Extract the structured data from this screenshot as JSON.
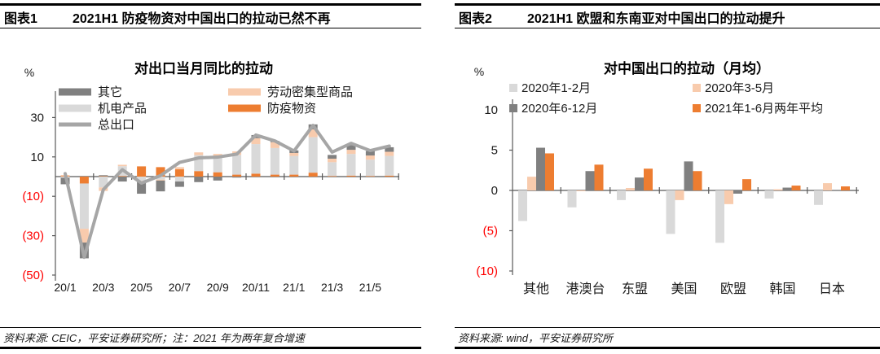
{
  "accent_colors": {
    "dark_gray": "#808080",
    "light_gray": "#D9D9D9",
    "line_gray": "#A6A6A6",
    "peach": "#F8CBAD",
    "orange": "#ED7D31",
    "negative_label": "#FF0000",
    "axis": "#595959"
  },
  "chart_data": [
    {
      "type": "bar",
      "subtype": "stacked-bars-with-line",
      "figure_label": "图表1",
      "figure_title": "2021H1 防疫物资对中国出口的拉动已然不再",
      "title": "对出口当月同比的拉动",
      "unit_label": "%",
      "categories": [
        "20/1",
        "20/2",
        "20/3",
        "20/4",
        "20/5",
        "20/6",
        "20/7",
        "20/8",
        "20/9",
        "20/10",
        "20/11",
        "20/12",
        "21/1",
        "21/2",
        "21/3",
        "21/4",
        "21/5",
        "21/6"
      ],
      "x_tick_labels": [
        "20/1",
        "20/3",
        "20/5",
        "20/7",
        "20/9",
        "20/11",
        "21/1",
        "21/3",
        "21/5"
      ],
      "series": [
        {
          "name": "其它",
          "type": "bar",
          "color": "#808080",
          "values": [
            -3.3,
            -8.0,
            0.5,
            -2.5,
            -6.0,
            -5.5,
            -2.7,
            -2.8,
            -2.0,
            -0.5,
            1.6,
            0.6,
            1.3,
            2.5,
            1.9,
            2.3,
            2.3,
            2.3
          ]
        },
        {
          "name": "机电产品",
          "type": "bar",
          "color": "#D9D9D9",
          "values": [
            -0.6,
            -23.0,
            -5.5,
            5.0,
            -2.2,
            -1.5,
            -2.5,
            8.1,
            7.8,
            10.0,
            15.0,
            13.5,
            9.5,
            18.0,
            7.0,
            11.0,
            8.3,
            10.0
          ]
        },
        {
          "name": "总出口",
          "type": "line",
          "color": "#A6A6A6",
          "values": [
            1.5,
            -41.0,
            -6.6,
            3.5,
            -3.3,
            0.5,
            7.2,
            9.5,
            9.9,
            11.4,
            21.1,
            18.1,
            13.0,
            26.0,
            12.4,
            16.9,
            13.2,
            15.5
          ]
        },
        {
          "name": "劳动密集型商品",
          "type": "bar",
          "color": "#F8CBAD",
          "values": [
            0.5,
            -7.0,
            -1.8,
            0.7,
            -0.5,
            -0.5,
            1.1,
            1.4,
            1.5,
            1.8,
            3.0,
            3.0,
            1.5,
            4.0,
            1.8,
            2.1,
            2.1,
            2.1
          ]
        },
        {
          "name": "防疫物资",
          "type": "bar",
          "color": "#ED7D31",
          "values": [
            0.3,
            -3.5,
            0.2,
            0.3,
            5.2,
            4.8,
            3.7,
            2.8,
            2.2,
            1.0,
            1.5,
            1.0,
            1.0,
            2.0,
            0.3,
            0.5,
            0.3,
            0.5
          ]
        }
      ],
      "stack_order": [
        "防疫物资",
        "机电产品",
        "劳动密集型商品",
        "其它"
      ],
      "yticks": [
        {
          "value": 30,
          "label": "30"
        },
        {
          "value": 10,
          "label": "10"
        },
        {
          "value": -10,
          "label": "(10)"
        },
        {
          "value": -30,
          "label": "(30)"
        },
        {
          "value": -50,
          "label": "(50)"
        }
      ],
      "ylim": [
        -52,
        43
      ],
      "legend_position": "top-left-two-columns",
      "grid": "off",
      "source_note": "资料来源: CEIC，平安证券研究所；注：2021 年为两年复合增速"
    },
    {
      "type": "bar",
      "subtype": "grouped-bars",
      "figure_label": "图表2",
      "figure_title": "2021H1 欧盟和东南亚对中国出口的拉动提升",
      "title": "对中国出口的拉动（月均）",
      "unit_label": "%",
      "categories": [
        "其他",
        "港澳台",
        "东盟",
        "美国",
        "欧盟",
        "韩国",
        "日本"
      ],
      "series": [
        {
          "name": "2020年1-2月",
          "type": "bar",
          "color": "#D9D9D9",
          "values": [
            -3.8,
            -2.1,
            -1.2,
            -5.4,
            -6.5,
            -1.0,
            -1.8
          ]
        },
        {
          "name": "2020年3-5月",
          "type": "bar",
          "color": "#F8CBAD",
          "values": [
            1.7,
            -0.1,
            0.3,
            -1.2,
            -1.7,
            0.15,
            0.9
          ]
        },
        {
          "name": "2020年6-12月",
          "type": "bar",
          "color": "#808080",
          "values": [
            5.3,
            2.4,
            1.6,
            3.6,
            -0.4,
            0.35,
            0.05
          ]
        },
        {
          "name": "2021年1-6月两年平均",
          "type": "bar",
          "color": "#ED7D31",
          "values": [
            4.6,
            3.2,
            2.7,
            2.4,
            1.4,
            0.6,
            0.5
          ]
        }
      ],
      "yticks": [
        {
          "value": 10,
          "label": "10"
        },
        {
          "value": 5,
          "label": "5"
        },
        {
          "value": 0,
          "label": "0"
        },
        {
          "value": -5,
          "label": "(5)"
        },
        {
          "value": -10,
          "label": "(10)"
        }
      ],
      "ylim": [
        -10.5,
        11
      ],
      "legend_position": "top-two-columns",
      "grid": "off",
      "source_note": "资料来源: wind，平安证券研究所"
    }
  ]
}
